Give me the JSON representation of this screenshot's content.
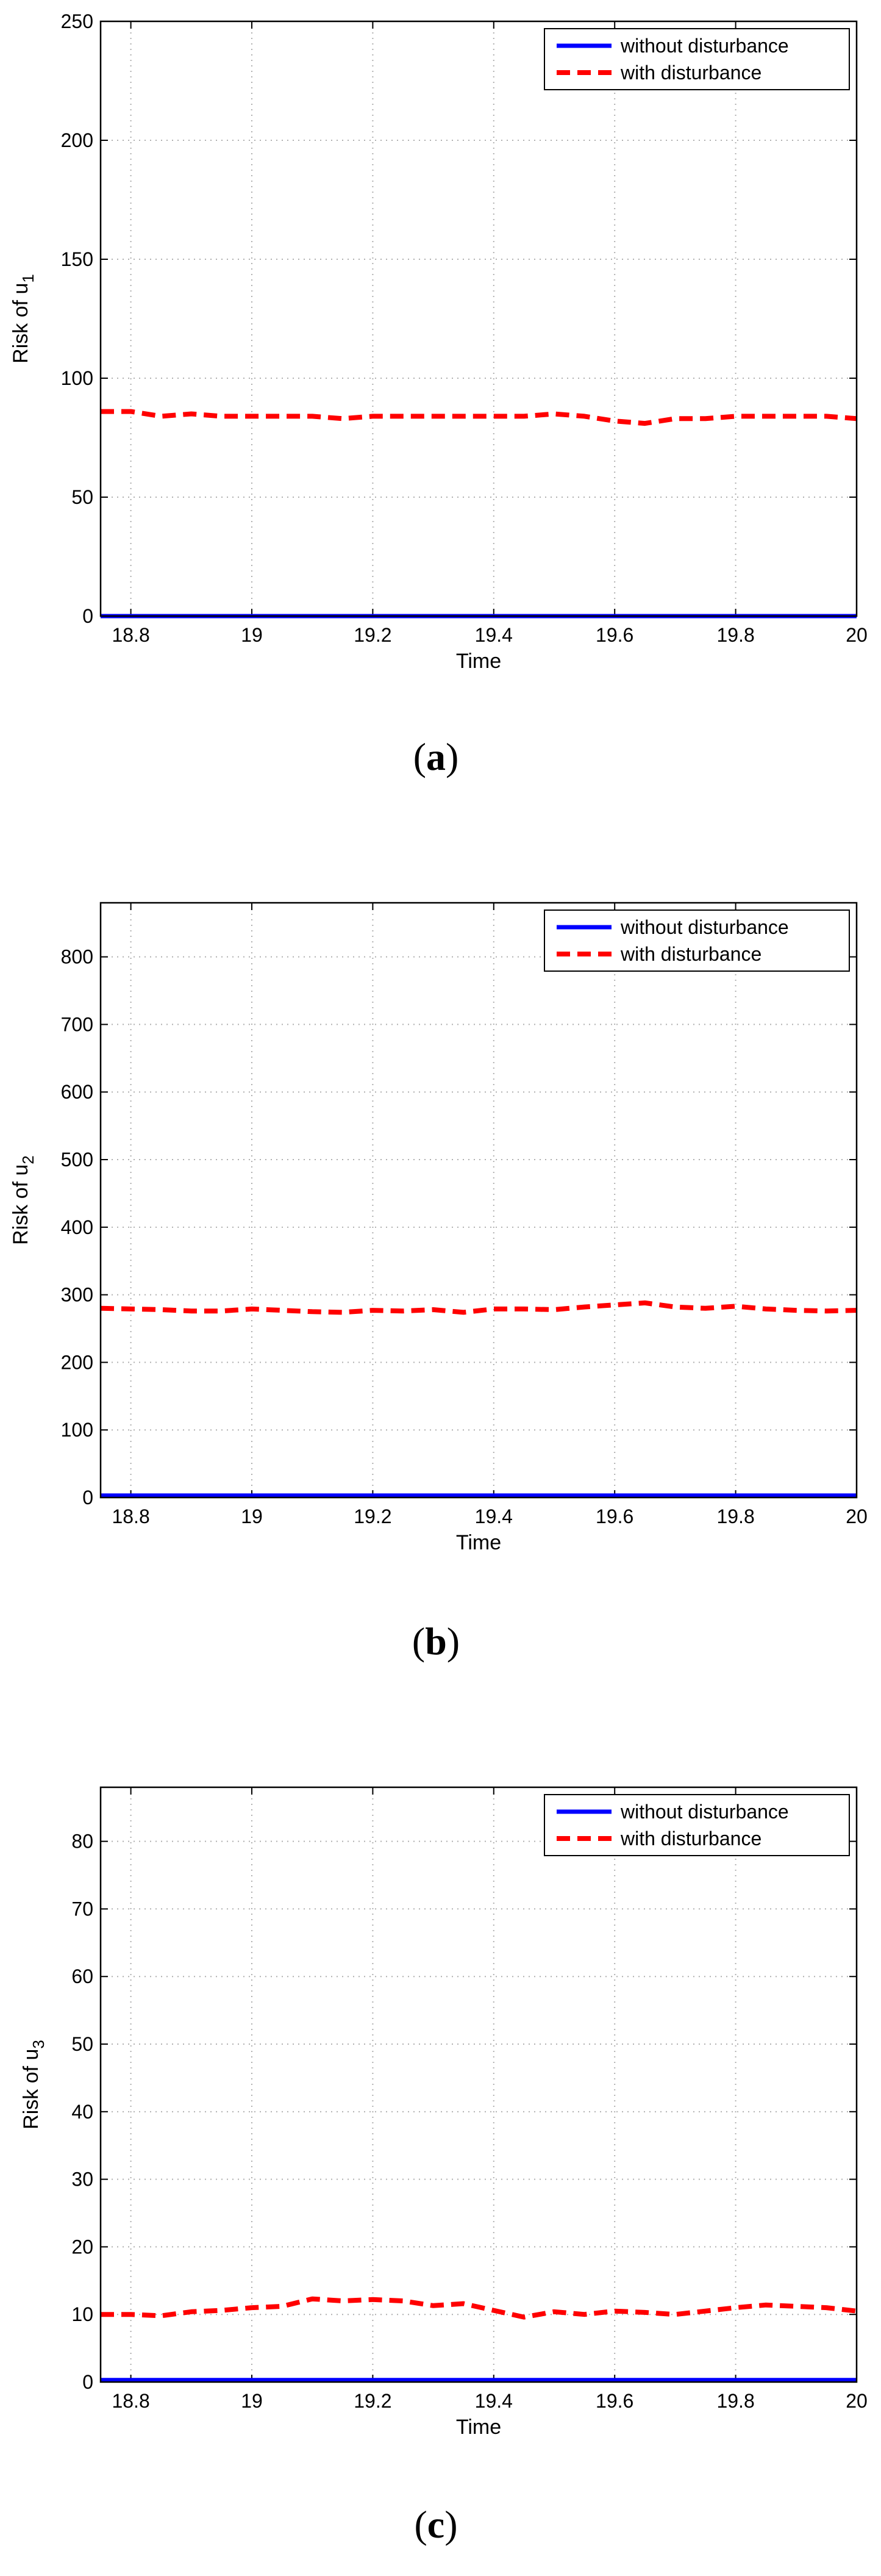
{
  "chart_data": [
    {
      "type": "line",
      "panel_label": "(a)",
      "xlabel": "Time",
      "ylabel": "Risk of u",
      "ylabel_subscript": "1",
      "xlim": [
        18.75,
        20
      ],
      "ylim": [
        0,
        250
      ],
      "xticks": [
        "18.8",
        "19",
        "19.2",
        "19.4",
        "19.6",
        "19.8",
        "20"
      ],
      "yticks": [
        "0",
        "50",
        "100",
        "150",
        "200",
        "250"
      ],
      "grid": true,
      "legend_position": "top-right",
      "series": [
        {
          "name": "without disturbance",
          "color": "#0000ff",
          "style": "solid",
          "x": [
            18.75,
            20
          ],
          "y": [
            0,
            0
          ]
        },
        {
          "name": "with disturbance",
          "color": "#ff0000",
          "style": "dashed",
          "x": [
            18.75,
            18.8,
            18.85,
            18.9,
            18.95,
            19.0,
            19.05,
            19.1,
            19.15,
            19.2,
            19.25,
            19.3,
            19.35,
            19.4,
            19.45,
            19.5,
            19.55,
            19.6,
            19.65,
            19.7,
            19.75,
            19.8,
            19.85,
            19.9,
            19.95,
            20.0
          ],
          "y": [
            86,
            86,
            84,
            85,
            84,
            84,
            84,
            84,
            83,
            84,
            84,
            84,
            84,
            84,
            84,
            85,
            84,
            82,
            81,
            83,
            83,
            84,
            84,
            84,
            84,
            83
          ]
        }
      ]
    },
    {
      "type": "line",
      "panel_label": "(b)",
      "xlabel": "Time",
      "ylabel": "Risk of u",
      "ylabel_subscript": "2",
      "xlim": [
        18.75,
        20
      ],
      "ylim": [
        0,
        880
      ],
      "xticks": [
        "18.8",
        "19",
        "19.2",
        "19.4",
        "19.6",
        "19.8",
        "20"
      ],
      "yticks": [
        "0",
        "100",
        "200",
        "300",
        "400",
        "500",
        "600",
        "700",
        "800"
      ],
      "grid": true,
      "legend_position": "top-right",
      "series": [
        {
          "name": "without disturbance",
          "color": "#0000ff",
          "style": "solid",
          "x": [
            18.75,
            20
          ],
          "y": [
            3,
            3
          ]
        },
        {
          "name": "with disturbance",
          "color": "#ff0000",
          "style": "dashed",
          "x": [
            18.75,
            18.8,
            18.85,
            18.9,
            18.95,
            19.0,
            19.05,
            19.1,
            19.15,
            19.2,
            19.25,
            19.3,
            19.35,
            19.4,
            19.45,
            19.5,
            19.55,
            19.6,
            19.65,
            19.7,
            19.75,
            19.8,
            19.85,
            19.9,
            19.95,
            20.0
          ],
          "y": [
            280,
            279,
            278,
            276,
            276,
            279,
            277,
            275,
            274,
            277,
            276,
            278,
            274,
            279,
            279,
            278,
            282,
            285,
            288,
            282,
            280,
            283,
            279,
            277,
            276,
            277
          ]
        }
      ]
    },
    {
      "type": "line",
      "panel_label": "(c)",
      "xlabel": "Time",
      "ylabel": "Risk of u",
      "ylabel_subscript": "3",
      "xlim": [
        18.75,
        20
      ],
      "ylim": [
        0,
        88
      ],
      "xticks": [
        "18.8",
        "19",
        "19.2",
        "19.4",
        "19.6",
        "19.8",
        "20"
      ],
      "yticks": [
        "0",
        "10",
        "20",
        "30",
        "40",
        "50",
        "60",
        "70",
        "80"
      ],
      "grid": true,
      "legend_position": "top-right",
      "series": [
        {
          "name": "without disturbance",
          "color": "#0000ff",
          "style": "solid",
          "x": [
            18.75,
            20
          ],
          "y": [
            0.3,
            0.3
          ]
        },
        {
          "name": "with disturbance",
          "color": "#ff0000",
          "style": "dashed",
          "x": [
            18.75,
            18.8,
            18.85,
            18.9,
            18.95,
            19.0,
            19.05,
            19.1,
            19.15,
            19.2,
            19.25,
            19.3,
            19.35,
            19.4,
            19.45,
            19.5,
            19.55,
            19.6,
            19.65,
            19.7,
            19.75,
            19.8,
            19.85,
            19.9,
            19.95,
            20.0
          ],
          "y": [
            10,
            10,
            9.8,
            10.4,
            10.6,
            11,
            11.2,
            12.3,
            12,
            12.2,
            12,
            11.3,
            11.6,
            10.6,
            9.6,
            10.4,
            10,
            10.5,
            10.3,
            10,
            10.5,
            11,
            11.4,
            11.2,
            11,
            10.5
          ]
        }
      ]
    }
  ]
}
